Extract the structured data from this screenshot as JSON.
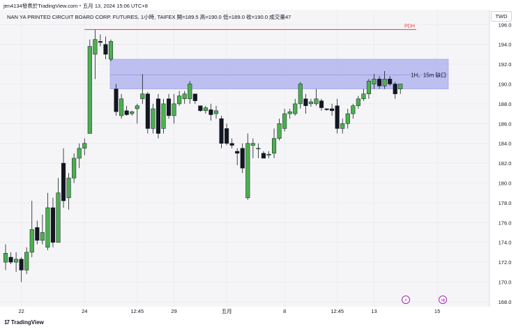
{
  "caption": "jen4134發表於TradingView.com・五月 13, 2024 15:06 UTC+8",
  "header": "NAN YA PRINTED CIRCUIT BOARD CORP. FUTURES, 1小時, TAIFEX  開=189.5  高=190.0  低=189.0  收=190.0  成交量47",
  "currency": "TWD",
  "footer": {
    "mark": "17",
    "brand": "TradingView"
  },
  "colors": {
    "up": "#4caf50",
    "down": "#131722",
    "zone": "#b3b5ef",
    "pdh": "#f23645",
    "grid": "#f0f3fa",
    "bg": "#f5f5f7"
  },
  "chart_data": {
    "type": "candlestick",
    "ylim": [
      167.5,
      197.5
    ],
    "y_ticks": [
      "196.0",
      "194.0",
      "192.0",
      "190.0",
      "188.0",
      "186.0",
      "184.0",
      "182.0",
      "180.0",
      "178.0",
      "176.0",
      "174.0",
      "172.0",
      "170.0",
      "168.0"
    ],
    "x_ticks": [
      {
        "label": "22",
        "bar": 3
      },
      {
        "label": "24",
        "bar": 15
      },
      {
        "label": "12:45",
        "bar": 25
      },
      {
        "label": "29",
        "bar": 32
      },
      {
        "label": "五月",
        "bar": 42
      },
      {
        "label": "8",
        "bar": 53
      },
      {
        "label": "12:45",
        "bar": 63
      },
      {
        "label": "13",
        "bar": 70
      },
      {
        "label": "15",
        "bar": 82
      }
    ],
    "candles": [
      {
        "o": 172.0,
        "h": 173.8,
        "l": 171.2,
        "c": 172.9
      },
      {
        "o": 172.5,
        "h": 173.0,
        "l": 171.8,
        "c": 172.0
      },
      {
        "o": 172.0,
        "h": 173.0,
        "l": 171.0,
        "c": 172.3
      },
      {
        "o": 172.3,
        "h": 172.5,
        "l": 170.0,
        "c": 171.2
      },
      {
        "o": 171.2,
        "h": 173.5,
        "l": 170.8,
        "c": 173.0
      },
      {
        "o": 173.0,
        "h": 178.2,
        "l": 172.5,
        "c": 175.3
      },
      {
        "o": 175.5,
        "h": 176.2,
        "l": 173.8,
        "c": 174.2
      },
      {
        "o": 174.2,
        "h": 176.8,
        "l": 173.8,
        "c": 175.0
      },
      {
        "o": 173.5,
        "h": 179.0,
        "l": 173.2,
        "c": 177.5
      },
      {
        "o": 177.5,
        "h": 178.5,
        "l": 173.5,
        "c": 174.0
      },
      {
        "o": 174.0,
        "h": 180.5,
        "l": 174.0,
        "c": 179.0
      },
      {
        "o": 182.0,
        "h": 183.5,
        "l": 177.5,
        "c": 178.2
      },
      {
        "o": 178.5,
        "h": 181.0,
        "l": 177.3,
        "c": 180.5
      },
      {
        "o": 180.5,
        "h": 183.0,
        "l": 180.0,
        "c": 182.5
      },
      {
        "o": 182.5,
        "h": 184.0,
        "l": 181.5,
        "c": 183.5
      },
      {
        "o": 183.5,
        "h": 184.5,
        "l": 182.8,
        "c": 184.0
      },
      {
        "o": 185.0,
        "h": 194.5,
        "l": 185.0,
        "c": 193.8
      },
      {
        "o": 193.0,
        "h": 195.5,
        "l": 190.5,
        "c": 194.5
      },
      {
        "o": 194.3,
        "h": 195.0,
        "l": 193.8,
        "c": 194.2
      },
      {
        "o": 194.0,
        "h": 194.8,
        "l": 192.5,
        "c": 193.0
      },
      {
        "o": 192.5,
        "h": 194.5,
        "l": 192.3,
        "c": 194.3
      },
      {
        "o": 189.5,
        "h": 190.0,
        "l": 186.8,
        "c": 187.2
      },
      {
        "o": 186.8,
        "h": 189.0,
        "l": 186.5,
        "c": 188.5
      },
      {
        "o": 187.3,
        "h": 187.8,
        "l": 186.8,
        "c": 186.9
      },
      {
        "o": 187.0,
        "h": 187.3,
        "l": 186.8,
        "c": 187.2
      },
      {
        "o": 187.5,
        "h": 188.0,
        "l": 186.0,
        "c": 187.8
      },
      {
        "o": 188.5,
        "h": 191.0,
        "l": 188.0,
        "c": 189.0
      },
      {
        "o": 189.0,
        "h": 189.2,
        "l": 185.0,
        "c": 185.5
      },
      {
        "o": 185.5,
        "h": 188.0,
        "l": 185.0,
        "c": 187.5
      },
      {
        "o": 188.5,
        "h": 189.0,
        "l": 184.5,
        "c": 185.0
      },
      {
        "o": 185.5,
        "h": 188.5,
        "l": 185.0,
        "c": 188.0
      },
      {
        "o": 188.5,
        "h": 189.0,
        "l": 186.5,
        "c": 186.8
      },
      {
        "o": 186.8,
        "h": 189.0,
        "l": 186.0,
        "c": 188.0
      },
      {
        "o": 188.0,
        "h": 189.3,
        "l": 187.8,
        "c": 188.8
      },
      {
        "o": 188.5,
        "h": 189.3,
        "l": 188.0,
        "c": 189.0
      },
      {
        "o": 188.5,
        "h": 190.3,
        "l": 188.0,
        "c": 190.0
      },
      {
        "o": 189.0,
        "h": 189.0,
        "l": 188.0,
        "c": 188.3
      },
      {
        "o": 187.8,
        "h": 187.8,
        "l": 187.2,
        "c": 187.3
      },
      {
        "o": 187.3,
        "h": 187.8,
        "l": 187.0,
        "c": 187.6
      },
      {
        "o": 187.4,
        "h": 188.0,
        "l": 186.3,
        "c": 186.9
      },
      {
        "o": 187.0,
        "h": 187.8,
        "l": 186.5,
        "c": 187.3
      },
      {
        "o": 186.5,
        "h": 186.8,
        "l": 183.5,
        "c": 184.0
      },
      {
        "o": 185.5,
        "h": 186.0,
        "l": 183.8,
        "c": 184.0
      },
      {
        "o": 184.0,
        "h": 184.5,
        "l": 183.5,
        "c": 183.8
      },
      {
        "o": 183.2,
        "h": 183.5,
        "l": 181.8,
        "c": 183.0
      },
      {
        "o": 183.5,
        "h": 184.0,
        "l": 181.0,
        "c": 181.5
      },
      {
        "o": 178.5,
        "h": 185.0,
        "l": 178.3,
        "c": 184.0
      },
      {
        "o": 183.8,
        "h": 184.5,
        "l": 182.5,
        "c": 184.0
      },
      {
        "o": 183.5,
        "h": 184.0,
        "l": 182.5,
        "c": 183.5
      },
      {
        "o": 183.0,
        "h": 183.2,
        "l": 182.5,
        "c": 182.5
      },
      {
        "o": 182.8,
        "h": 183.2,
        "l": 182.5,
        "c": 182.9
      },
      {
        "o": 183.0,
        "h": 185.5,
        "l": 182.5,
        "c": 184.5
      },
      {
        "o": 184.5,
        "h": 186.5,
        "l": 184.3,
        "c": 186.0
      },
      {
        "o": 185.5,
        "h": 187.5,
        "l": 185.2,
        "c": 187.0
      },
      {
        "o": 187.0,
        "h": 187.5,
        "l": 186.5,
        "c": 187.2
      },
      {
        "o": 187.0,
        "h": 188.5,
        "l": 186.8,
        "c": 188.0
      },
      {
        "o": 188.0,
        "h": 190.2,
        "l": 187.5,
        "c": 190.0
      },
      {
        "o": 188.5,
        "h": 189.0,
        "l": 187.0,
        "c": 187.8
      },
      {
        "o": 188.0,
        "h": 188.5,
        "l": 187.7,
        "c": 188.2
      },
      {
        "o": 188.0,
        "h": 189.5,
        "l": 187.8,
        "c": 188.5
      },
      {
        "o": 188.3,
        "h": 188.5,
        "l": 187.3,
        "c": 187.6
      },
      {
        "o": 187.5,
        "h": 187.5,
        "l": 187.3,
        "c": 187.4
      },
      {
        "o": 187.5,
        "h": 188.0,
        "l": 186.8,
        "c": 187.3
      },
      {
        "o": 187.8,
        "h": 188.5,
        "l": 185.0,
        "c": 185.5
      },
      {
        "o": 185.5,
        "h": 186.5,
        "l": 185.0,
        "c": 186.0
      },
      {
        "o": 186.0,
        "h": 187.5,
        "l": 185.5,
        "c": 187.0
      },
      {
        "o": 187.0,
        "h": 188.0,
        "l": 186.5,
        "c": 187.8
      },
      {
        "o": 187.8,
        "h": 188.8,
        "l": 187.5,
        "c": 188.5
      },
      {
        "o": 188.5,
        "h": 189.5,
        "l": 188.3,
        "c": 189.0
      },
      {
        "o": 189.0,
        "h": 190.5,
        "l": 188.5,
        "c": 190.3
      },
      {
        "o": 190.0,
        "h": 191.0,
        "l": 189.5,
        "c": 190.5
      },
      {
        "o": 190.5,
        "h": 190.8,
        "l": 189.5,
        "c": 189.8
      },
      {
        "o": 189.8,
        "h": 191.3,
        "l": 189.5,
        "c": 190.5
      },
      {
        "o": 190.5,
        "h": 190.8,
        "l": 189.8,
        "c": 190.0
      },
      {
        "o": 190.0,
        "h": 190.2,
        "l": 188.5,
        "c": 189.0
      },
      {
        "o": 189.5,
        "h": 190.0,
        "l": 189.0,
        "c": 190.0
      }
    ],
    "zone": {
      "label": "1H、15m 缺口",
      "top": 192.5,
      "bottom": 189.5,
      "start_bar": 20,
      "mid": 190.9
    },
    "pdh": {
      "label": "PDH",
      "value": 195.5,
      "start_bar": 15,
      "end_bar": 78
    },
    "marker_glyph": "⚡",
    "marker_glyph2": "⇉"
  }
}
